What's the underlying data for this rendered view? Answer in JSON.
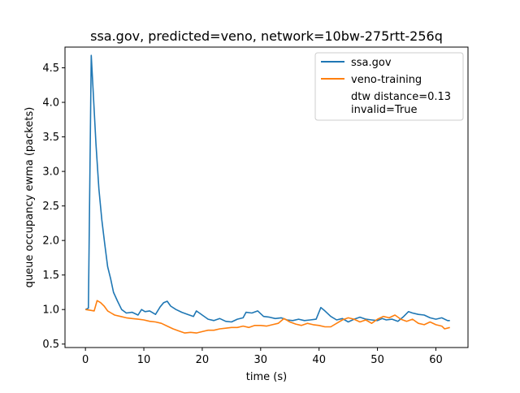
{
  "chart_data": {
    "type": "line",
    "title": "ssa.gov, predicted=veno, network=10bw-275rtt-256q",
    "xlabel": "time (s)",
    "ylabel": "queue occupancy ewma (packets)",
    "xlim": [
      -3.5,
      65.5
    ],
    "ylim": [
      0.45,
      4.8
    ],
    "xticks": [
      0,
      10,
      20,
      30,
      40,
      50,
      60
    ],
    "yticks": [
      0.5,
      1.0,
      1.5,
      2.0,
      2.5,
      3.0,
      3.5,
      4.0,
      4.5
    ],
    "xtick_labels": [
      "0",
      "10",
      "20",
      "30",
      "40",
      "50",
      "60"
    ],
    "ytick_labels": [
      "0.5",
      "1.0",
      "1.5",
      "2.0",
      "2.5",
      "3.0",
      "3.5",
      "4.0",
      "4.5"
    ],
    "grid": false,
    "legend_position": "top-right",
    "series": [
      {
        "name": "ssa.gov",
        "color": "#1f77b4",
        "x": [
          0,
          0.5,
          1.0,
          1.3,
          1.8,
          2.3,
          2.8,
          3.3,
          3.8,
          4.3,
          4.8,
          5.5,
          6.2,
          7.0,
          8.0,
          9.0,
          9.6,
          10.2,
          11.0,
          12.0,
          12.8,
          13.4,
          14.0,
          14.6,
          15.5,
          16.5,
          17.5,
          18.5,
          19.0,
          20.0,
          21.0,
          22.0,
          23.0,
          24.0,
          25.0,
          26.0,
          27.0,
          27.5,
          28.5,
          29.5,
          30.5,
          31.5,
          32.5,
          33.5,
          34.5,
          35.5,
          36.5,
          37.5,
          38.5,
          39.5,
          40.3,
          41.0,
          42.0,
          43.0,
          44.0,
          45.0,
          46.0,
          47.0,
          48.0,
          49.0,
          50.0,
          50.8,
          51.5,
          52.5,
          53.5,
          54.5,
          55.3,
          56.0,
          57.0,
          58.0,
          59.0,
          60.0,
          61.0,
          62.0,
          62.4
        ],
        "y": [
          1.0,
          1.02,
          4.68,
          4.2,
          3.4,
          2.75,
          2.3,
          1.95,
          1.62,
          1.45,
          1.25,
          1.12,
          1.0,
          0.95,
          0.96,
          0.92,
          1.0,
          0.97,
          0.98,
          0.93,
          1.04,
          1.1,
          1.12,
          1.05,
          1.0,
          0.96,
          0.93,
          0.9,
          0.98,
          0.92,
          0.86,
          0.84,
          0.87,
          0.83,
          0.82,
          0.86,
          0.88,
          0.96,
          0.95,
          0.98,
          0.9,
          0.89,
          0.87,
          0.88,
          0.85,
          0.84,
          0.86,
          0.84,
          0.85,
          0.86,
          1.03,
          0.98,
          0.9,
          0.85,
          0.87,
          0.82,
          0.86,
          0.89,
          0.86,
          0.85,
          0.84,
          0.87,
          0.85,
          0.86,
          0.83,
          0.9,
          0.97,
          0.95,
          0.93,
          0.92,
          0.88,
          0.86,
          0.88,
          0.84,
          0.84
        ]
      },
      {
        "name": "veno-training",
        "color": "#ff7f0e",
        "x": [
          0,
          0.8,
          1.5,
          2.0,
          2.6,
          3.2,
          3.8,
          4.4,
          5.0,
          6.0,
          7.0,
          8.0,
          9.0,
          10.0,
          11.0,
          12.0,
          13.0,
          14.0,
          15.0,
          16.0,
          17.0,
          18.0,
          19.0,
          20.0,
          21.0,
          22.0,
          23.0,
          24.0,
          25.0,
          26.0,
          27.0,
          28.0,
          29.0,
          30.0,
          31.0,
          32.0,
          33.0,
          34.0,
          35.0,
          36.0,
          37.0,
          38.0,
          39.0,
          40.0,
          41.0,
          42.0,
          43.0,
          44.0,
          45.0,
          46.0,
          47.0,
          48.0,
          49.0,
          50.0,
          51.0,
          52.0,
          53.0,
          54.0,
          55.0,
          56.0,
          57.0,
          58.0,
          59.0,
          60.0,
          61.0,
          61.5,
          62.4
        ],
        "y": [
          1.0,
          0.99,
          0.98,
          1.13,
          1.1,
          1.05,
          0.98,
          0.95,
          0.92,
          0.9,
          0.88,
          0.87,
          0.86,
          0.85,
          0.83,
          0.82,
          0.8,
          0.76,
          0.72,
          0.69,
          0.66,
          0.67,
          0.66,
          0.68,
          0.7,
          0.7,
          0.72,
          0.73,
          0.74,
          0.74,
          0.76,
          0.74,
          0.77,
          0.77,
          0.76,
          0.78,
          0.8,
          0.87,
          0.82,
          0.79,
          0.77,
          0.8,
          0.78,
          0.77,
          0.75,
          0.75,
          0.8,
          0.85,
          0.88,
          0.86,
          0.82,
          0.85,
          0.8,
          0.86,
          0.9,
          0.88,
          0.92,
          0.86,
          0.83,
          0.86,
          0.8,
          0.78,
          0.82,
          0.78,
          0.76,
          0.72,
          0.74
        ]
      }
    ],
    "annotations": [
      "dtw distance=0.13",
      "invalid=True"
    ]
  }
}
